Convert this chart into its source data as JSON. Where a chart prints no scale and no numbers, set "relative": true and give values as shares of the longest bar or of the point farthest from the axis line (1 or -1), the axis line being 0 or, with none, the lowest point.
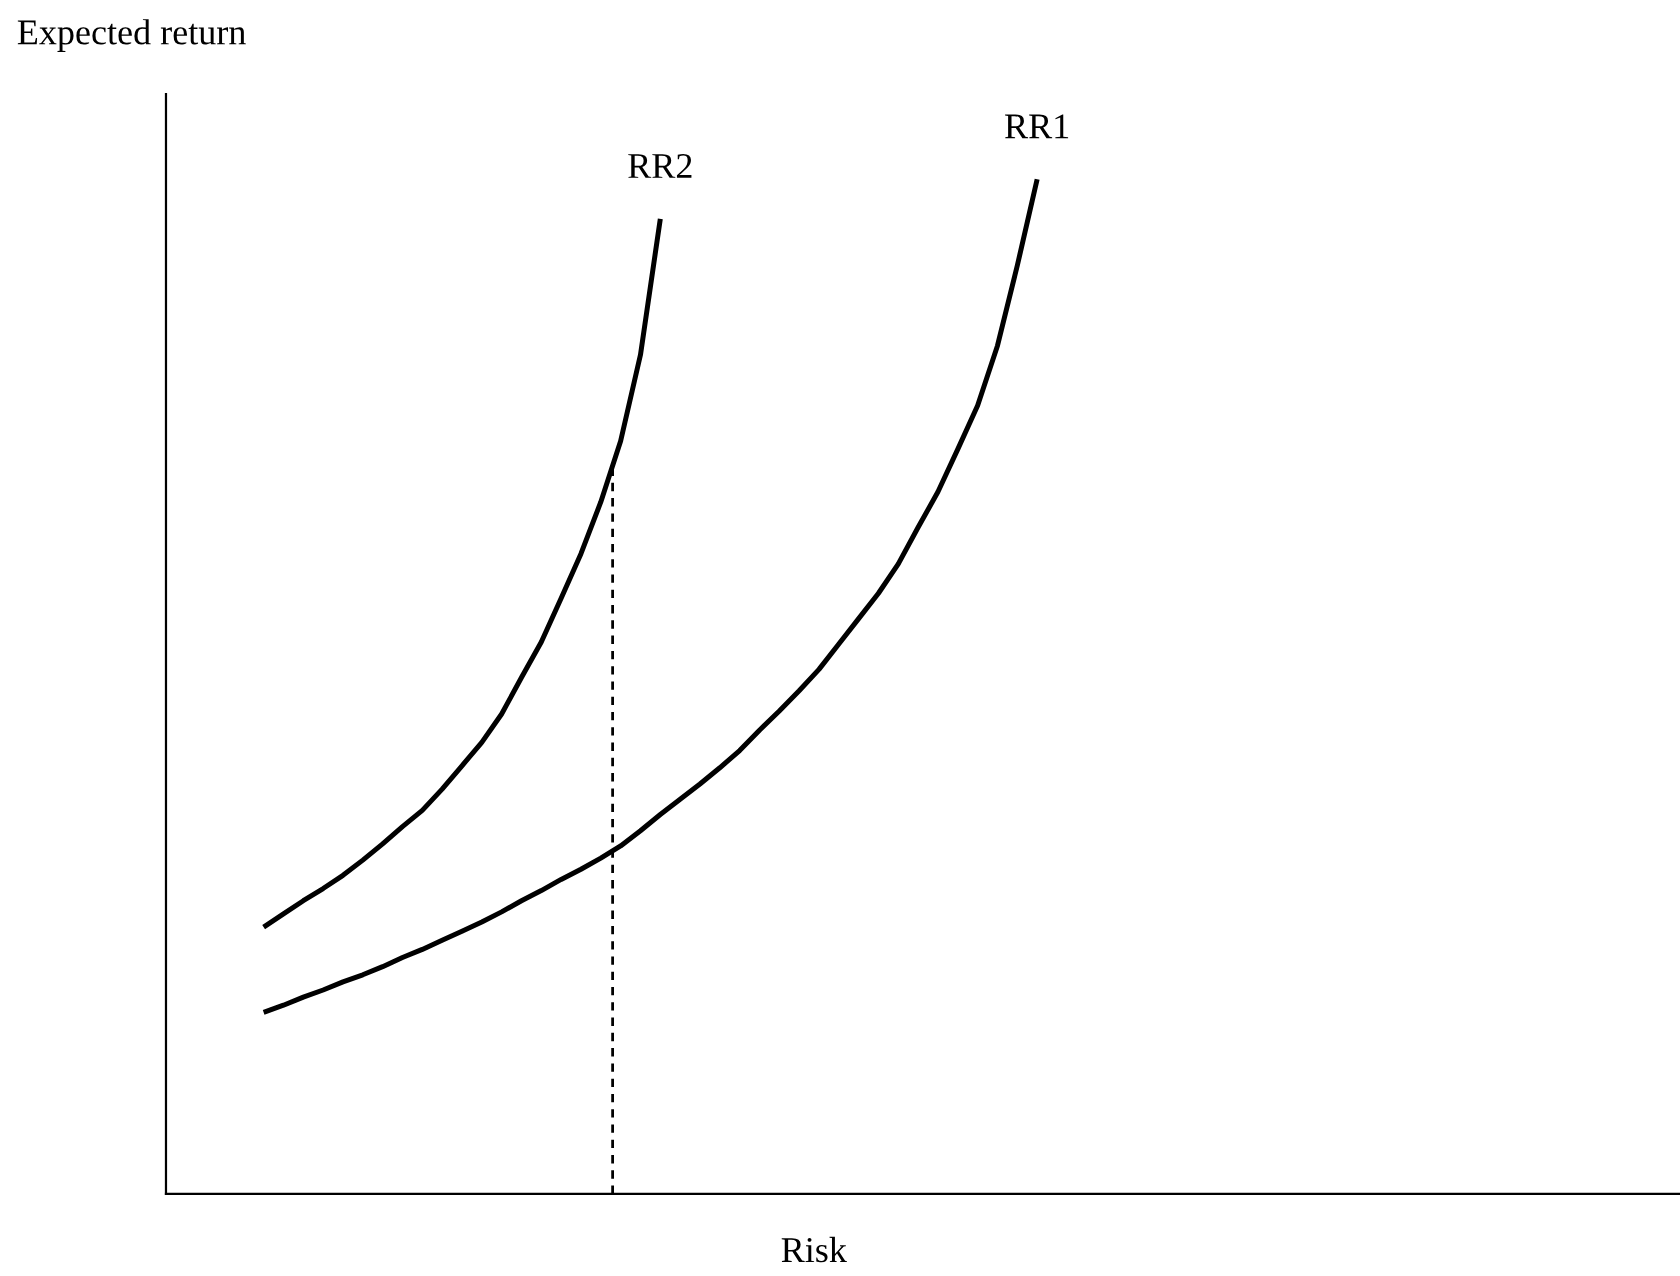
{
  "chart_data": {
    "type": "line",
    "relative": true,
    "xlabel": "Risk",
    "ylabel": "Expected return",
    "tick_labels": false,
    "categories": [
      null,
      null,
      null,
      null,
      null,
      null,
      null,
      null,
      null,
      null,
      null,
      null,
      null,
      null,
      null,
      null,
      null,
      null,
      null,
      null,
      null,
      null,
      null,
      null,
      null,
      null,
      null,
      null,
      null,
      null,
      null,
      null,
      null,
      null,
      null,
      null,
      null,
      null,
      null,
      null
    ],
    "series": [
      {
        "name": "RR2",
        "color": "#000000",
        "line_style": "solid",
        "values": [
          0.263,
          0.276,
          0.289,
          0.301,
          0.314,
          0.329,
          0.345,
          0.362,
          0.378,
          0.399,
          0.422,
          0.445,
          0.473,
          0.509,
          0.544,
          0.587,
          0.631,
          0.682,
          0.742,
          0.827,
          0.961,
          null,
          null,
          null,
          null,
          null,
          null,
          null,
          null,
          null,
          null,
          null,
          null,
          null,
          null,
          null,
          null,
          null,
          null,
          null
        ]
      },
      {
        "name": "RR1",
        "color": "#000000",
        "line_style": "solid",
        "values": [
          0.179,
          0.186,
          0.194,
          0.201,
          0.209,
          0.216,
          0.224,
          0.233,
          0.241,
          0.25,
          0.259,
          0.268,
          0.278,
          0.289,
          0.299,
          0.31,
          0.32,
          0.331,
          0.343,
          0.358,
          0.374,
          0.389,
          0.404,
          0.42,
          0.437,
          0.457,
          0.476,
          0.496,
          0.517,
          0.542,
          0.567,
          0.592,
          0.621,
          0.657,
          0.692,
          0.734,
          0.777,
          0.836,
          0.915,
          1.0
        ]
      }
    ]
  }
}
